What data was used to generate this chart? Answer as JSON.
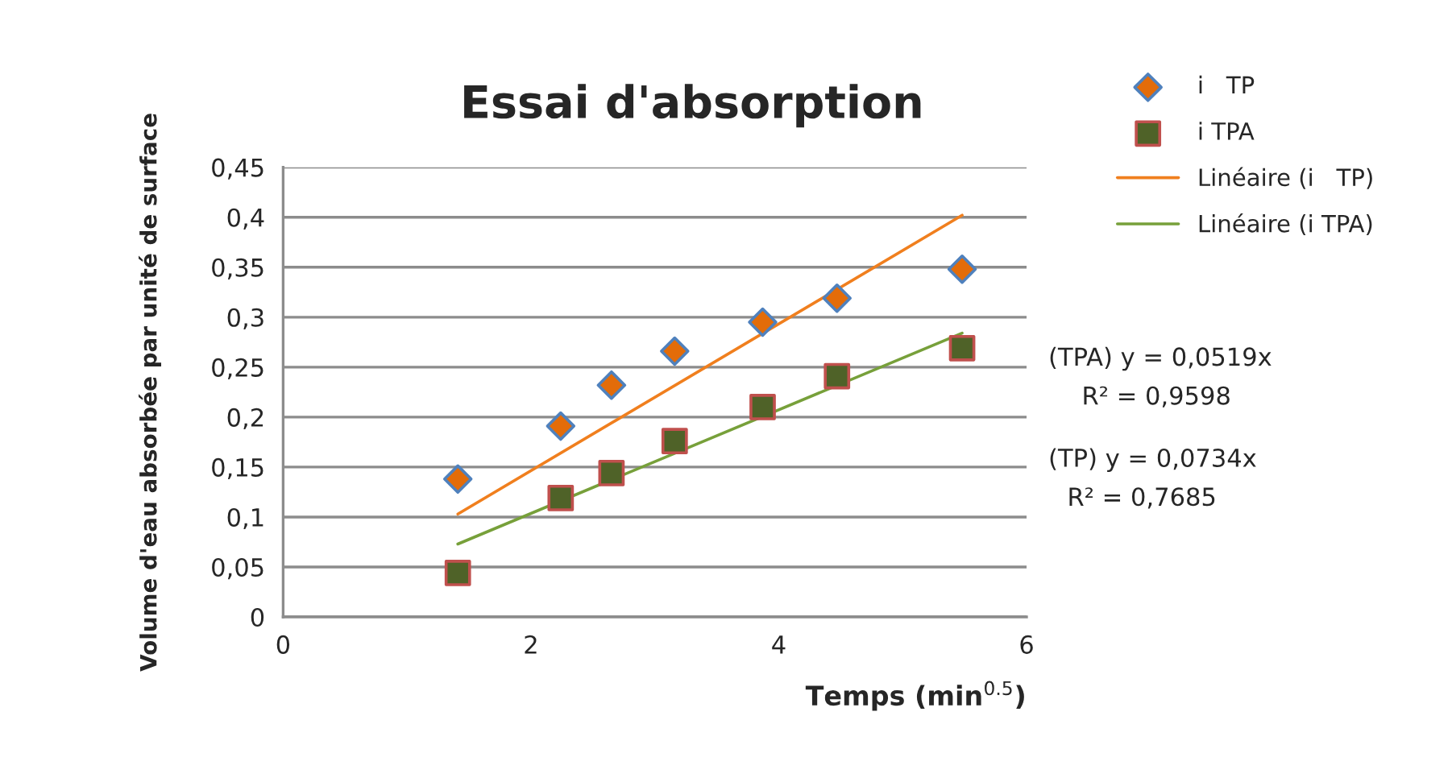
{
  "chart_data": {
    "type": "scatter",
    "title": "Essai d'absorption",
    "xlabel": "Temps (min$^{0.5}$)",
    "ylabel": "Volume d'eau absorbée par unité de surface",
    "series": [
      {
        "name": "i   TP",
        "marker": "diamond",
        "color": "#e36c09",
        "x": [
          1.41,
          2.24,
          2.65,
          3.16,
          3.87,
          4.47,
          5.48
        ],
        "values": [
          0.138,
          0.191,
          0.232,
          0.266,
          0.295,
          0.319,
          0.348
        ]
      },
      {
        "name": "i TPA",
        "marker": "square",
        "color": "#4f6228",
        "x": [
          1.41,
          2.24,
          2.65,
          3.16,
          3.87,
          4.47,
          5.48
        ],
        "values": [
          0.044,
          0.119,
          0.144,
          0.176,
          0.21,
          0.241,
          0.269
        ]
      },
      {
        "name": "Linéaire (i   TP)",
        "type": "line",
        "marker": "none",
        "color": "#f07f1e",
        "x": [
          1.41,
          5.48
        ],
        "values": [
          0.103,
          0.402
        ]
      },
      {
        "name": "Linéaire (i TPA)",
        "type": "line",
        "marker": "none",
        "color": "#77a03a",
        "x": [
          1.41,
          5.48
        ],
        "values": [
          0.073,
          0.284
        ]
      }
    ],
    "xlim": [
      0,
      6
    ],
    "xticks": [
      0,
      2,
      4,
      6
    ],
    "ylim": [
      0,
      0.45
    ],
    "yticks": [
      0,
      {
        "value": 0.05,
        "label": "0,05"
      },
      {
        "value": 0.1,
        "label": "0,1"
      },
      {
        "value": 0.15,
        "label": "0,15"
      },
      {
        "value": 0.2,
        "label": "0,2"
      },
      {
        "value": 0.25,
        "label": "0,25"
      },
      {
        "value": 0.3,
        "label": "0,3"
      },
      {
        "value": 0.35,
        "label": "0,35"
      },
      {
        "value": 0.4,
        "label": "0,4"
      },
      {
        "value": 0.45,
        "label": "0,45"
      }
    ],
    "grid": "y",
    "legend": "right",
    "annotations": [
      "(TPA) y = 0,0519x",
      "R² = 0,9598",
      "(TP) y = 0,0734x",
      "R² = 0,7685"
    ]
  }
}
